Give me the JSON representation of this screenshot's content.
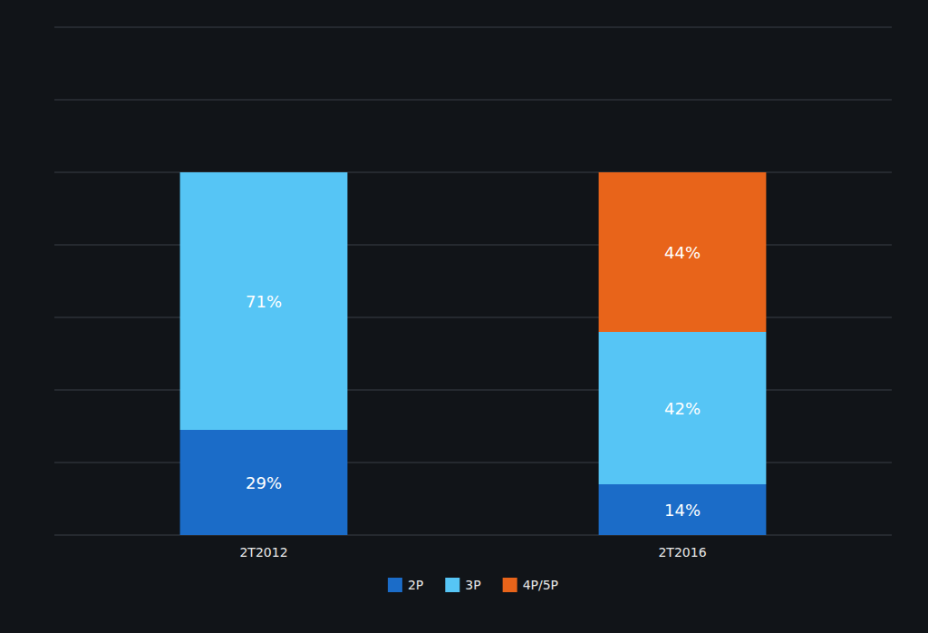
{
  "chart_data": {
    "type": "bar",
    "stacked": true,
    "categories": [
      "2T2012",
      "2T2016"
    ],
    "series": [
      {
        "name": "2P",
        "color": "#1B6CC8",
        "values": [
          29,
          14
        ],
        "value_labels": [
          "29%",
          "14%"
        ]
      },
      {
        "name": "3P",
        "color": "#56C5F5",
        "values": [
          71,
          42
        ],
        "value_labels": [
          "71%",
          "42%"
        ]
      },
      {
        "name": "4P/5P",
        "color": "#E8641A",
        "values": [
          0,
          44
        ],
        "value_labels": [
          null,
          "44%"
        ]
      }
    ],
    "ylim": [
      0,
      140
    ],
    "yticks": [
      0,
      20,
      40,
      60,
      80,
      100,
      120,
      140
    ],
    "grid": true,
    "tick_labels": "x",
    "data_labels": true,
    "legend": "bottom"
  }
}
